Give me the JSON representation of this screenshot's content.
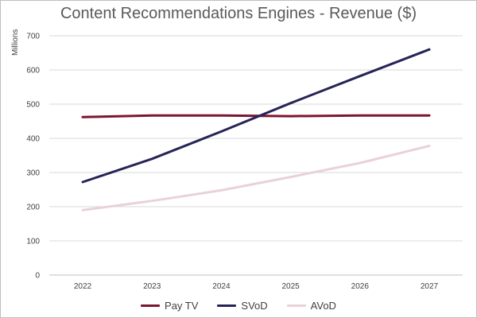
{
  "chart_data": {
    "type": "line",
    "title": "Content Recommendations Engines - Revenue ($)",
    "y_units": "Millions",
    "xlabel": "",
    "ylabel": "",
    "categories": [
      "2022",
      "2023",
      "2024",
      "2025",
      "2026",
      "2027"
    ],
    "ylim": [
      0,
      700
    ],
    "yticks": [
      0,
      100,
      200,
      300,
      400,
      500,
      600,
      700
    ],
    "grid": "horizontal",
    "legend_position": "bottom",
    "series": [
      {
        "name": "Pay TV",
        "color": "#7b1530",
        "values": [
          462,
          467,
          467,
          465,
          467,
          467
        ]
      },
      {
        "name": "SVoD",
        "color": "#262457",
        "values": [
          272,
          340,
          420,
          503,
          582,
          660
        ]
      },
      {
        "name": "AVoD",
        "color": "#ead1d9",
        "values": [
          190,
          217,
          248,
          287,
          328,
          378
        ]
      }
    ]
  }
}
